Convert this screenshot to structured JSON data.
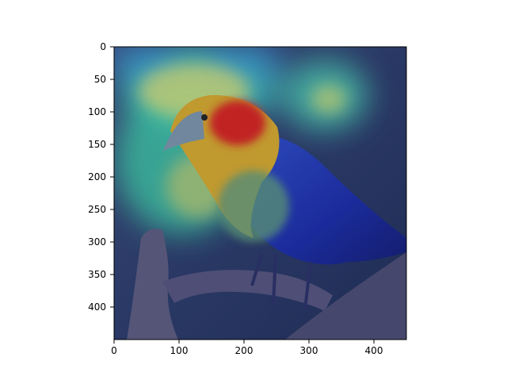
{
  "figure": {
    "image_subject": "bird perched on a tree branch with Grad-CAM heatmap overlay",
    "x_ticks": [
      "0",
      "100",
      "200",
      "300",
      "400"
    ],
    "y_ticks": [
      "0",
      "50",
      "100",
      "150",
      "200",
      "250",
      "300",
      "350",
      "400"
    ],
    "x_range": [
      0,
      448
    ],
    "y_range": [
      0,
      448
    ],
    "heatmap_colormap": "jet",
    "heatmap_hotspot": "bird head",
    "colors": {
      "background_dark": "#2f3e5e",
      "heat_hot": "#d0201a",
      "heat_warm": "#f0c020",
      "heat_mid": "#44d8b0",
      "heat_cool": "#2a3cc8",
      "branch": "#5a5878"
    }
  }
}
